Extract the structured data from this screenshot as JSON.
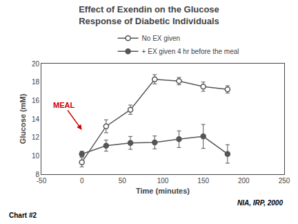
{
  "chart_data": {
    "type": "line",
    "title": "Effect of Exendin on the Glucose",
    "subtitle": "Response of Diabetic Individuals",
    "xlabel": "Time (minutes)",
    "ylabel": "Glucose (mM)",
    "xlim": [
      -50,
      250
    ],
    "ylim": [
      8,
      20
    ],
    "xticks": [
      -50,
      0,
      50,
      100,
      150,
      200,
      250
    ],
    "yticks": [
      8,
      10,
      12,
      14,
      16,
      18,
      20
    ],
    "grid": false,
    "legend": "top",
    "x": [
      0,
      30,
      60,
      90,
      120,
      150,
      180
    ],
    "series": [
      {
        "name": "No EX given",
        "color": "#555555",
        "marker": "circle-open",
        "values": [
          9.3,
          13.2,
          15.0,
          18.3,
          18.1,
          17.5,
          17.2
        ],
        "yerr": [
          0.5,
          0.7,
          0.5,
          0.5,
          0.4,
          0.5,
          0.4
        ]
      },
      {
        "name": "+ EX given 4 hr before the meal",
        "color": "#555555",
        "marker": "circle",
        "values": [
          10.2,
          11.1,
          11.4,
          11.45,
          11.8,
          12.1,
          10.2
        ],
        "yerr": [
          0.3,
          0.6,
          0.7,
          0.7,
          0.9,
          1.3,
          1.0
        ]
      }
    ],
    "annotations": [
      {
        "text": "MEAL",
        "x": 0,
        "y": 12.8,
        "color": "#CC0000"
      },
      {
        "text": "NIA, IRP, 2000"
      },
      {
        "text": "Chart #2"
      }
    ]
  }
}
